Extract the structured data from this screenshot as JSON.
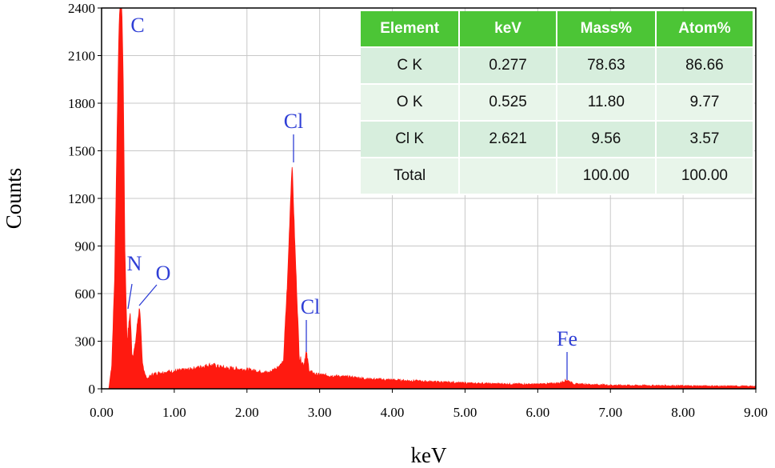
{
  "chart_data": {
    "type": "area",
    "xlabel": "keV",
    "ylabel": "Counts",
    "xlim": [
      0,
      9
    ],
    "ylim": [
      0,
      2400
    ],
    "x_ticks": [
      "0.00",
      "1.00",
      "2.00",
      "3.00",
      "4.00",
      "5.00",
      "6.00",
      "7.00",
      "8.00",
      "9.00"
    ],
    "y_ticks": [
      "0",
      "300",
      "600",
      "900",
      "1200",
      "1500",
      "1800",
      "2100",
      "2400"
    ],
    "grid": true,
    "series_color": "#ff1a10",
    "spectrum": {
      "x": [
        0.0,
        0.1,
        0.14,
        0.18,
        0.22,
        0.24,
        0.26,
        0.277,
        0.3,
        0.32,
        0.35,
        0.38,
        0.392,
        0.42,
        0.46,
        0.5,
        0.525,
        0.56,
        0.62,
        0.7,
        0.8,
        1.0,
        1.2,
        1.4,
        1.5,
        1.7,
        2.0,
        2.3,
        2.5,
        2.56,
        2.6,
        2.621,
        2.66,
        2.72,
        2.78,
        2.815,
        2.86,
        2.95,
        3.2,
        3.5,
        3.7,
        4.0,
        4.5,
        5.0,
        5.5,
        6.0,
        6.3,
        6.4,
        6.5,
        7.0,
        8.0,
        9.0
      ],
      "y": [
        0,
        0,
        150,
        700,
        1800,
        2300,
        2420,
        2450,
        1900,
        900,
        300,
        420,
        490,
        200,
        260,
        440,
        520,
        160,
        60,
        90,
        100,
        110,
        120,
        140,
        150,
        130,
        120,
        100,
        160,
        700,
        1200,
        1420,
        900,
        200,
        150,
        230,
        110,
        90,
        80,
        70,
        60,
        55,
        45,
        35,
        30,
        28,
        35,
        55,
        30,
        22,
        18,
        15
      ]
    },
    "peaks": [
      {
        "label": "C",
        "x": 0.277,
        "y": 2450,
        "color": "#2f3fd6"
      },
      {
        "label": "N",
        "x": 0.392,
        "y": 490,
        "color": "#2f3fd6"
      },
      {
        "label": "O",
        "x": 0.525,
        "y": 520,
        "color": "#2f3fd6"
      },
      {
        "label": "Cl",
        "x": 2.621,
        "y": 1420,
        "color": "#2f3fd6"
      },
      {
        "label": "Cl",
        "x": 2.815,
        "y": 230,
        "color": "#2f3fd6"
      },
      {
        "label": "Fe",
        "x": 6.4,
        "y": 55,
        "color": "#2f3fd6"
      }
    ],
    "table": {
      "headers": [
        "Element",
        "keV",
        "Mass%",
        "Atom%"
      ],
      "header_color": "#4cc536",
      "row_colors": [
        "#d7eedd",
        "#e8f5ea"
      ],
      "rows": [
        [
          "C K",
          "0.277",
          "78.63",
          "86.66"
        ],
        [
          "O K",
          "0.525",
          "11.80",
          "9.77"
        ],
        [
          "Cl K",
          "2.621",
          "9.56",
          "3.57"
        ],
        [
          "Total",
          "",
          "100.00",
          "100.00"
        ]
      ]
    }
  }
}
